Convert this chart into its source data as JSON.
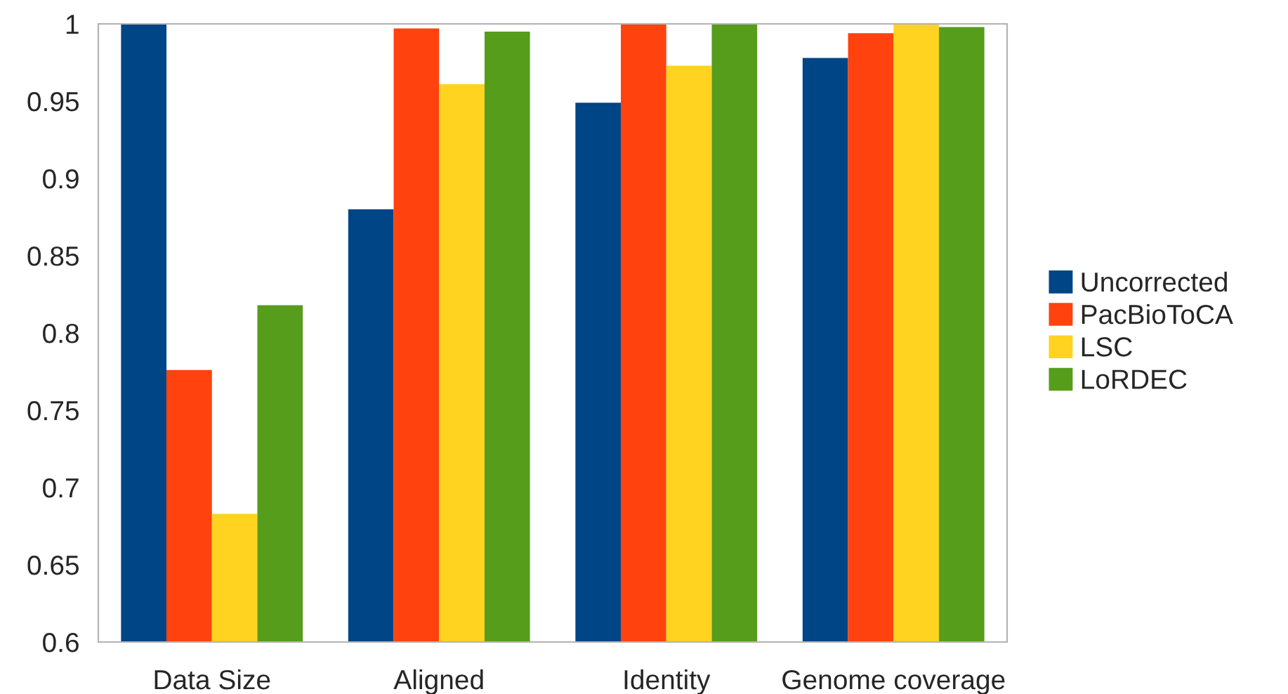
{
  "chart_data": {
    "type": "bar",
    "categories": [
      "Data Size",
      "Aligned",
      "Identity",
      "Genome coverage"
    ],
    "series": [
      {
        "name": "Uncorrected",
        "color": "#004586",
        "values": [
          1.0,
          0.88,
          0.949,
          0.978
        ]
      },
      {
        "name": "PacBioToCA",
        "color": "#ff420e",
        "values": [
          0.776,
          0.997,
          1.0,
          0.994
        ]
      },
      {
        "name": "LSC",
        "color": "#ffd320",
        "values": [
          0.683,
          0.961,
          0.973,
          1.0
        ]
      },
      {
        "name": "LoRDEC",
        "color": "#579d1c",
        "values": [
          0.818,
          0.995,
          1.0,
          0.998
        ]
      }
    ],
    "ylim": [
      0.6,
      1.0
    ],
    "yticks": [
      {
        "value": 0.6,
        "label": "0.6"
      },
      {
        "value": 0.65,
        "label": "0.65"
      },
      {
        "value": 0.7,
        "label": "0.7"
      },
      {
        "value": 0.75,
        "label": "0.75"
      },
      {
        "value": 0.8,
        "label": "0.8"
      },
      {
        "value": 0.85,
        "label": "0.85"
      },
      {
        "value": 0.9,
        "label": "0.9"
      },
      {
        "value": 0.95,
        "label": "0.95"
      },
      {
        "value": 1.0,
        "label": "1"
      }
    ],
    "grid": false,
    "legend": "right"
  }
}
